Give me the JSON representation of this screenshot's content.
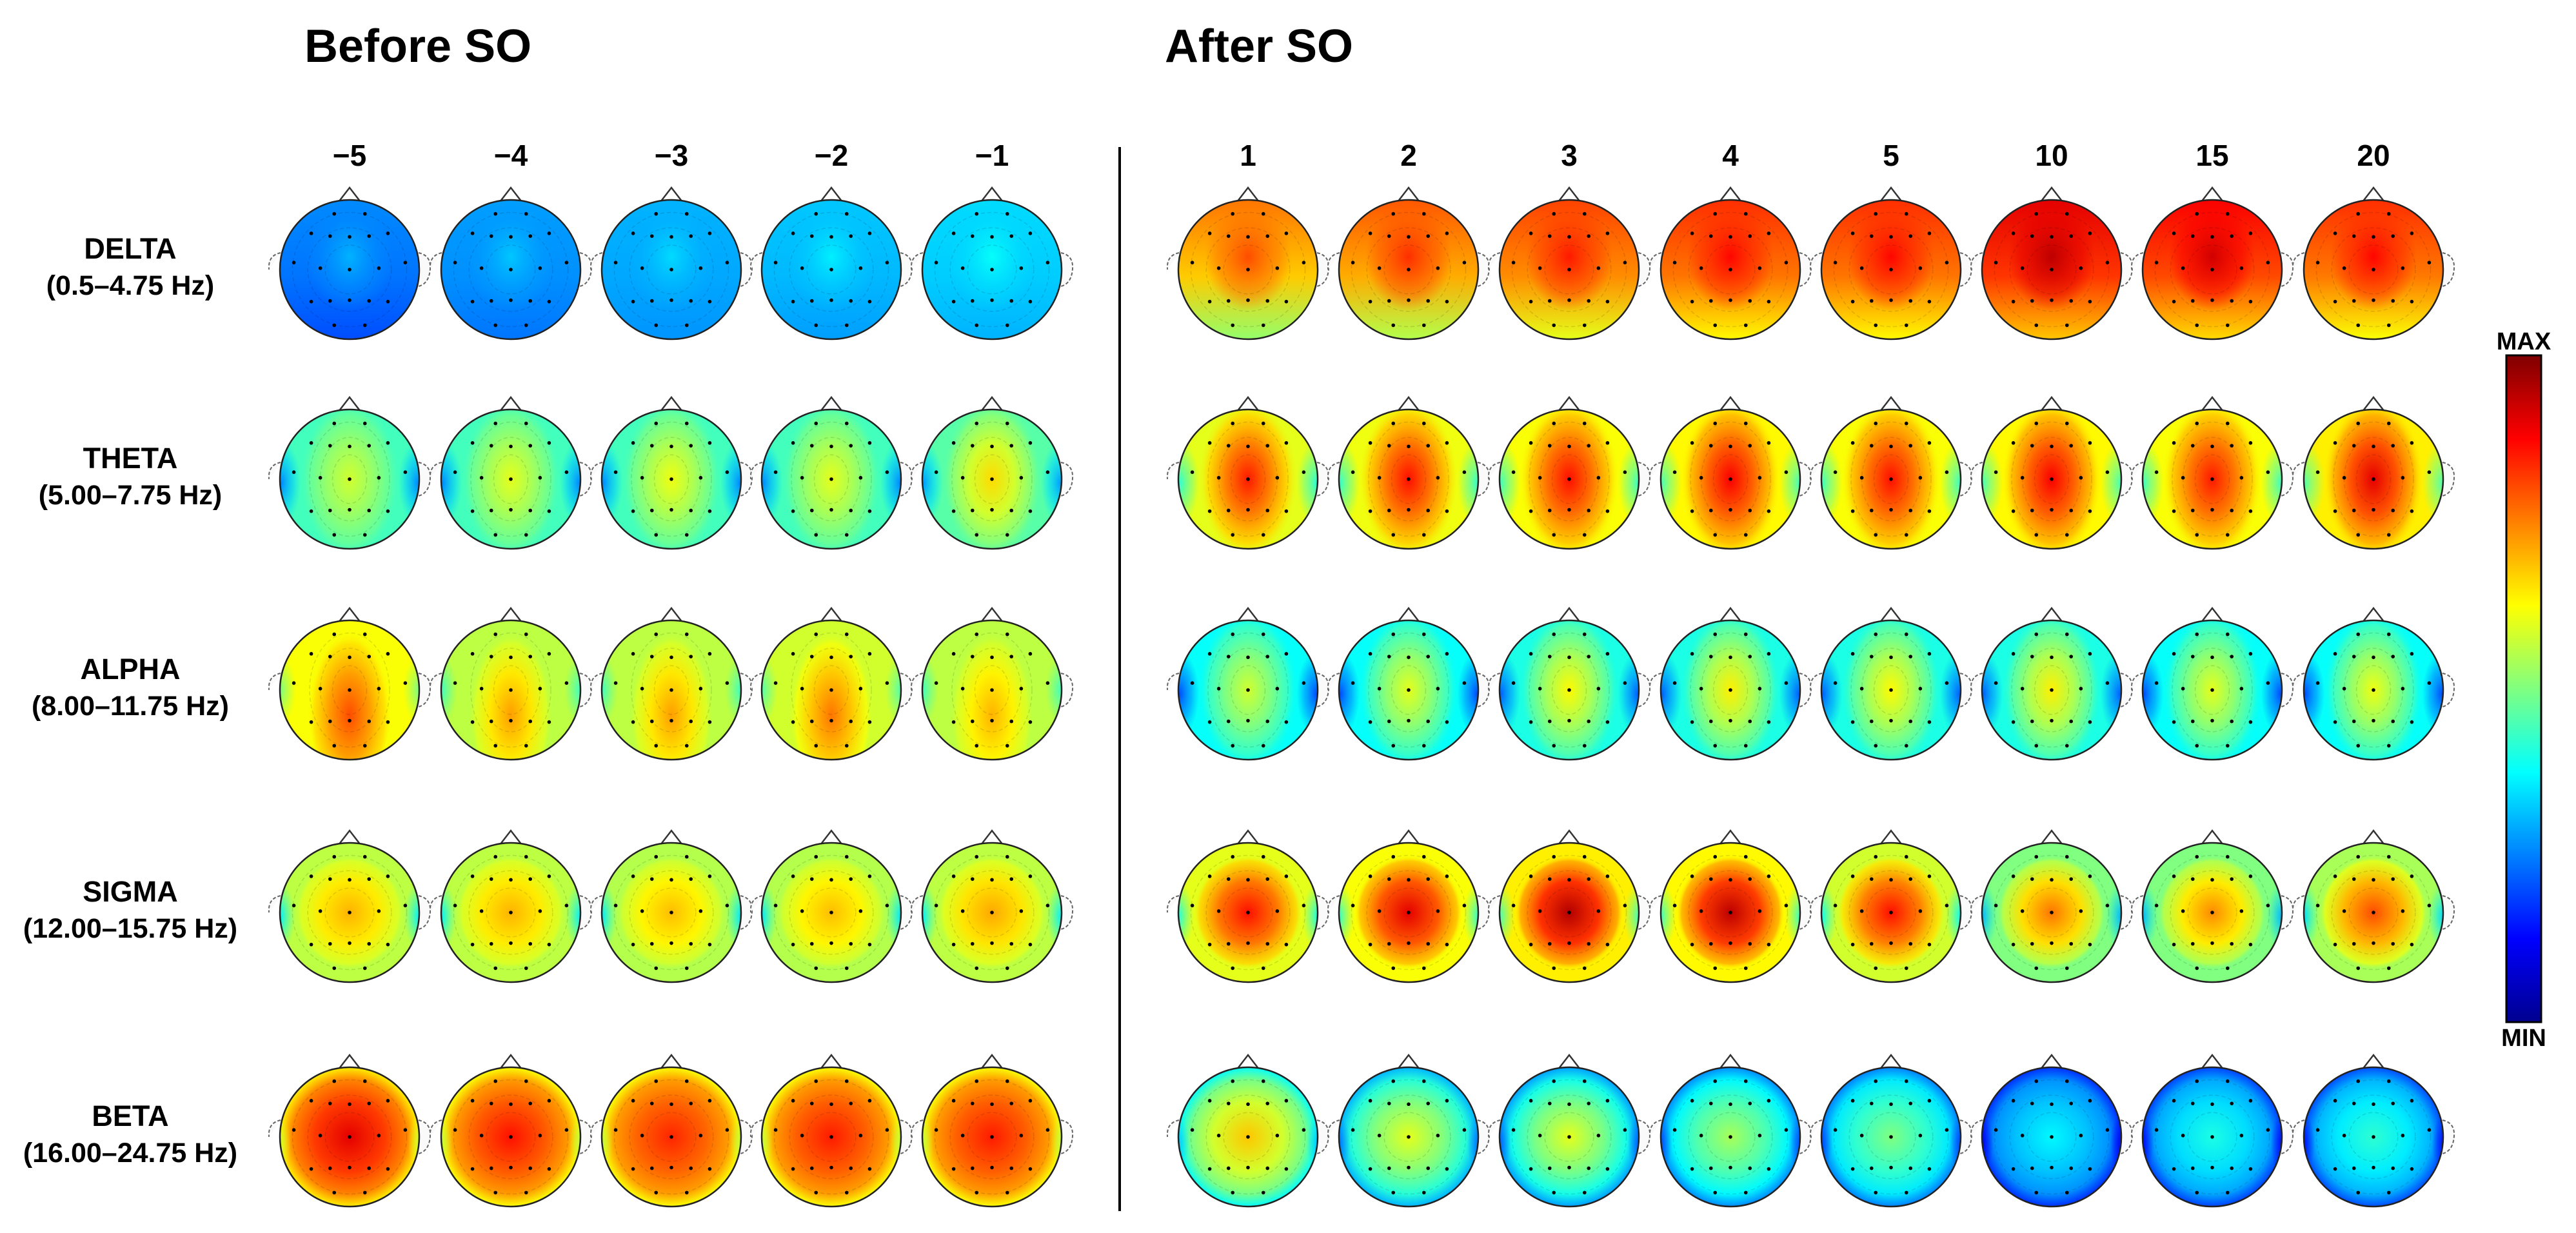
{
  "sections": {
    "before": {
      "title": "Before SO"
    },
    "after": {
      "title": "After SO"
    }
  },
  "columns": {
    "before": [
      "−5",
      "−4",
      "−3",
      "−2",
      "−1"
    ],
    "after": [
      "1",
      "2",
      "3",
      "4",
      "5",
      "10",
      "15",
      "20"
    ]
  },
  "bands": [
    {
      "name": "DELTA",
      "range": "(0.5–4.75 Hz)"
    },
    {
      "name": "THETA",
      "range": "(5.00–7.75 Hz)"
    },
    {
      "name": "ALPHA",
      "range": "(8.00–11.75 Hz)"
    },
    {
      "name": "SIGMA",
      "range": "(12.00–15.75 Hz)"
    },
    {
      "name": "BETA",
      "range": "(16.00–24.75 Hz)"
    }
  ],
  "colorbar": {
    "max_label": "MAX",
    "min_label": "MIN",
    "stops": [
      "#7f0000",
      "#ff0000",
      "#ff8000",
      "#ffff00",
      "#80ff80",
      "#00ffff",
      "#0080ff",
      "#0000ff",
      "#00008f"
    ]
  },
  "topomaps": {
    "before": [
      [
        {
          "p": "D",
          "v": 0.26,
          "c": 0.2
        },
        {
          "p": "D",
          "v": 0.28,
          "c": 0.24
        },
        {
          "p": "D",
          "v": 0.3,
          "c": 0.27
        },
        {
          "p": "D",
          "v": 0.32,
          "c": 0.28
        },
        {
          "p": "D",
          "v": 0.34,
          "c": 0.3
        }
      ],
      [
        {
          "p": "C",
          "v": 0.58,
          "c": 0.44
        },
        {
          "p": "C",
          "v": 0.6,
          "c": 0.44
        },
        {
          "p": "C",
          "v": 0.61,
          "c": 0.44
        },
        {
          "p": "C",
          "v": 0.6,
          "c": 0.44
        },
        {
          "p": "C",
          "v": 0.66,
          "c": 0.46
        }
      ],
      [
        {
          "p": "A",
          "v": 0.8,
          "c": 0.62
        },
        {
          "p": "A",
          "v": 0.72,
          "c": 0.56
        },
        {
          "p": "A",
          "v": 0.72,
          "c": 0.56
        },
        {
          "p": "A",
          "v": 0.76,
          "c": 0.58
        },
        {
          "p": "A",
          "v": 0.7,
          "c": 0.56
        }
      ],
      [
        {
          "p": "S",
          "v": 0.7,
          "c": 0.56
        },
        {
          "p": "S",
          "v": 0.7,
          "c": 0.56
        },
        {
          "p": "S",
          "v": 0.69,
          "c": 0.55
        },
        {
          "p": "S",
          "v": 0.69,
          "c": 0.55
        },
        {
          "p": "S",
          "v": 0.71,
          "c": 0.56
        }
      ],
      [
        {
          "p": "B",
          "v": 0.9,
          "c": 0.72
        },
        {
          "p": "B",
          "v": 0.86,
          "c": 0.7
        },
        {
          "p": "B",
          "v": 0.84,
          "c": 0.7
        },
        {
          "p": "B",
          "v": 0.85,
          "c": 0.7
        },
        {
          "p": "B",
          "v": 0.85,
          "c": 0.7
        }
      ]
    ],
    "after": [
      [
        {
          "p": "D",
          "v": 0.76,
          "c": 0.52
        },
        {
          "p": "D",
          "v": 0.79,
          "c": 0.55
        },
        {
          "p": "D",
          "v": 0.81,
          "c": 0.6
        },
        {
          "p": "D",
          "v": 0.83,
          "c": 0.63
        },
        {
          "p": "D",
          "v": 0.83,
          "c": 0.63
        },
        {
          "p": "D",
          "v": 0.9,
          "c": 0.68
        },
        {
          "p": "D",
          "v": 0.88,
          "c": 0.66
        },
        {
          "p": "D",
          "v": 0.83,
          "c": 0.62
        }
      ],
      [
        {
          "p": "C",
          "v": 0.85,
          "c": 0.6
        },
        {
          "p": "C",
          "v": 0.86,
          "c": 0.61
        },
        {
          "p": "C",
          "v": 0.86,
          "c": 0.62
        },
        {
          "p": "C",
          "v": 0.88,
          "c": 0.63
        },
        {
          "p": "C",
          "v": 0.86,
          "c": 0.62
        },
        {
          "p": "C",
          "v": 0.88,
          "c": 0.63
        },
        {
          "p": "C",
          "v": 0.85,
          "c": 0.62
        },
        {
          "p": "C",
          "v": 0.9,
          "c": 0.64
        }
      ],
      [
        {
          "p": "C",
          "v": 0.58,
          "c": 0.38
        },
        {
          "p": "C",
          "v": 0.6,
          "c": 0.38
        },
        {
          "p": "C",
          "v": 0.63,
          "c": 0.4
        },
        {
          "p": "C",
          "v": 0.64,
          "c": 0.4
        },
        {
          "p": "C",
          "v": 0.63,
          "c": 0.4
        },
        {
          "p": "C",
          "v": 0.64,
          "c": 0.4
        },
        {
          "p": "C",
          "v": 0.6,
          "c": 0.38
        },
        {
          "p": "C",
          "v": 0.61,
          "c": 0.38
        }
      ],
      [
        {
          "p": "S",
          "v": 0.86,
          "c": 0.6
        },
        {
          "p": "S",
          "v": 0.9,
          "c": 0.62
        },
        {
          "p": "S",
          "v": 0.95,
          "c": 0.64
        },
        {
          "p": "S",
          "v": 0.94,
          "c": 0.63
        },
        {
          "p": "S",
          "v": 0.86,
          "c": 0.58
        },
        {
          "p": "S",
          "v": 0.76,
          "c": 0.5
        },
        {
          "p": "S",
          "v": 0.74,
          "c": 0.5
        },
        {
          "p": "S",
          "v": 0.8,
          "c": 0.54
        }
      ],
      [
        {
          "p": "B",
          "v": 0.68,
          "c": 0.46
        },
        {
          "p": "B",
          "v": 0.6,
          "c": 0.38
        },
        {
          "p": "B",
          "v": 0.6,
          "c": 0.36
        },
        {
          "p": "B",
          "v": 0.54,
          "c": 0.34
        },
        {
          "p": "B",
          "v": 0.5,
          "c": 0.33
        },
        {
          "p": "B",
          "v": 0.37,
          "c": 0.25
        },
        {
          "p": "B",
          "v": 0.4,
          "c": 0.27
        },
        {
          "p": "B",
          "v": 0.42,
          "c": 0.28
        }
      ]
    ]
  }
}
